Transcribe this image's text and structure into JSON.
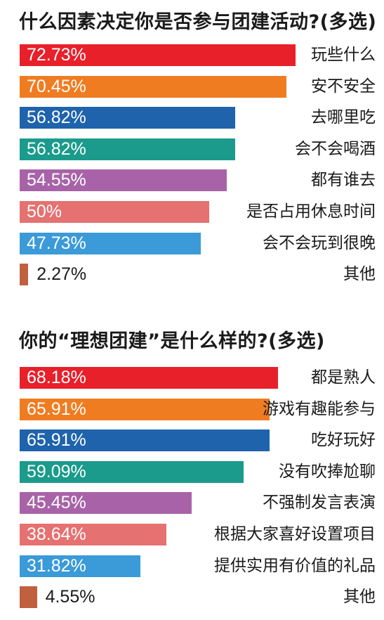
{
  "chart_data": [
    {
      "type": "bar",
      "title": "什么因素决定你是否参与团建活动?(多选)",
      "unit": "%",
      "categories": [
        "玩些什么",
        "安不安全",
        "去哪里吃",
        "会不会喝酒",
        "都有谁去",
        "是否占用休息时间",
        "会不会玩到很晚",
        "其他"
      ],
      "values": [
        72.73,
        70.45,
        56.82,
        56.82,
        54.55,
        50,
        47.73,
        2.27
      ],
      "labels": [
        "72.73%",
        "70.45%",
        "56.82%",
        "56.82%",
        "54.55%",
        "50%",
        "47.73%",
        "2.27%"
      ],
      "colors": [
        "#e8202a",
        "#f07c22",
        "#1e63ac",
        "#1a9b8b",
        "#a863a8",
        "#e57170",
        "#3b9ad8",
        "#c0603f"
      ],
      "xlim": [
        0,
        100
      ],
      "grid": false
    },
    {
      "type": "bar",
      "title": "你的“理想团建”是什么样的?(多选)",
      "unit": "%",
      "categories": [
        "都是熟人",
        "游戏有趣能参与",
        "吃好玩好",
        "没有吹捧尬聊",
        "不强制发言表演",
        "根据大家喜好设置项目",
        "提供实用有价值的礼品",
        "其他"
      ],
      "values": [
        68.18,
        65.91,
        65.91,
        59.09,
        45.45,
        38.64,
        31.82,
        4.55
      ],
      "labels": [
        "68.18%",
        "65.91%",
        "65.91%",
        "59.09%",
        "45.45%",
        "38.64%",
        "31.82%",
        "4.55%"
      ],
      "colors": [
        "#e8202a",
        "#f07c22",
        "#1e63ac",
        "#1a9b8b",
        "#a863a8",
        "#e57170",
        "#3b9ad8",
        "#c0603f"
      ],
      "xlim": [
        0,
        100
      ],
      "grid": false
    }
  ]
}
